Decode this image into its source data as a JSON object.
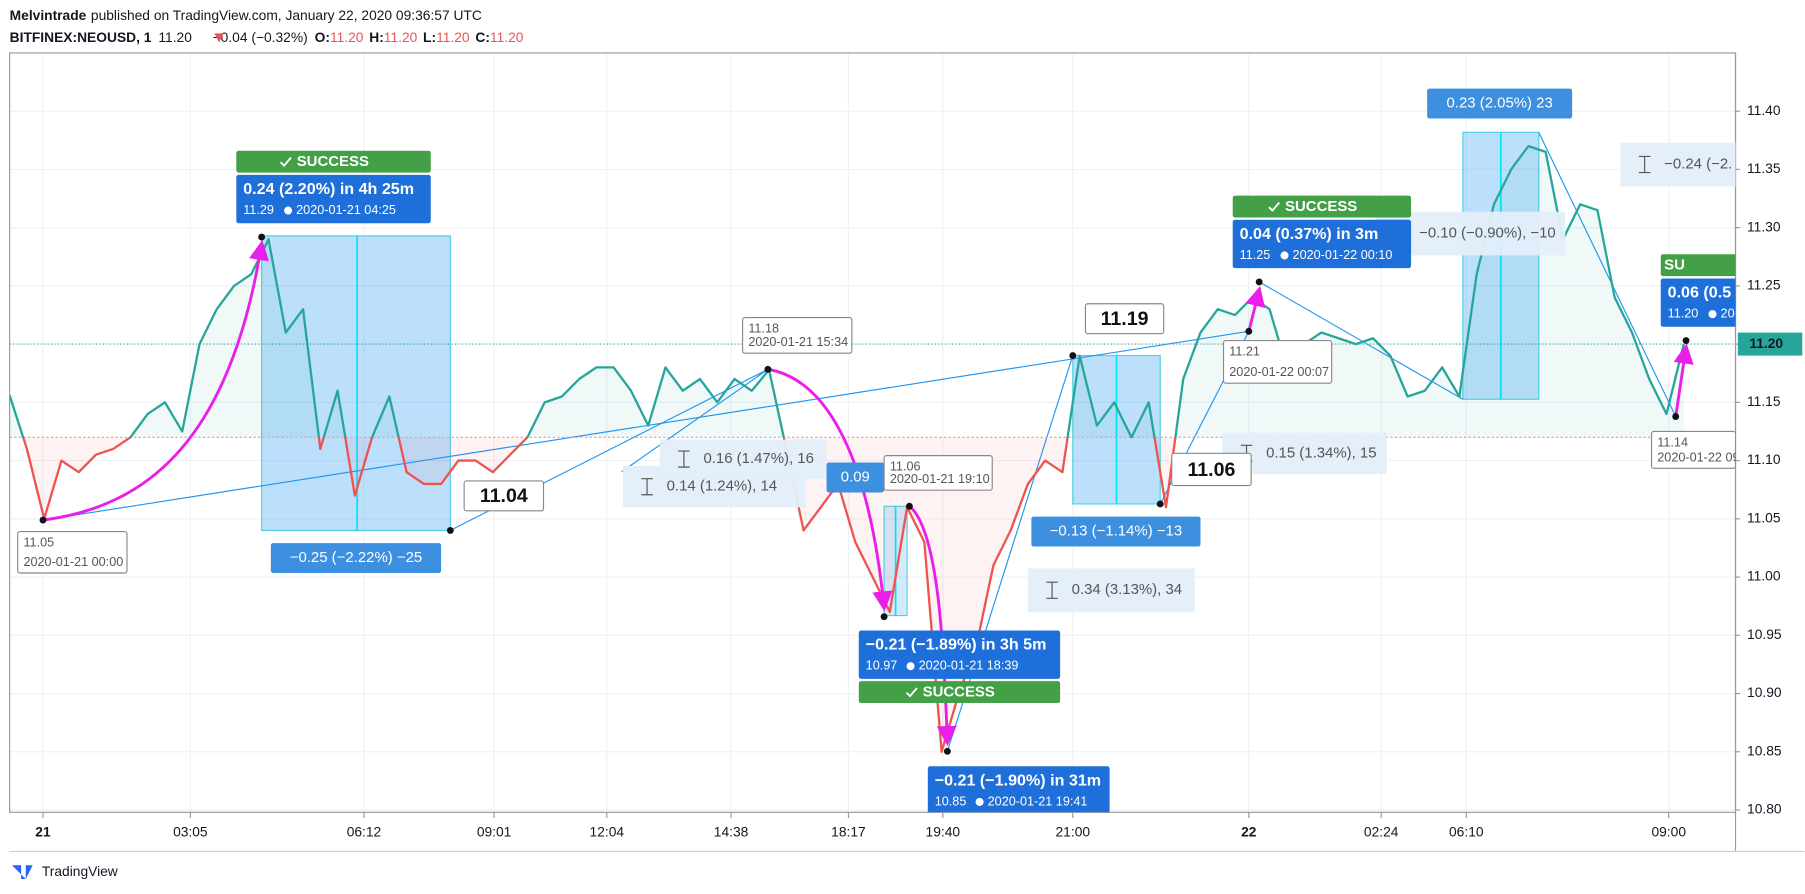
{
  "header": {
    "author": "Melvintrade",
    "published": "published on TradingView.com, January 22, 2020 09:36:57 UTC",
    "symbol": "BITFINEX:NEOUSD, 1",
    "last": "11.20",
    "change": "−0.04 (−0.32%)",
    "ohlc": [
      {
        "key": "O:",
        "value": "11.20"
      },
      {
        "key": "H:",
        "value": "11.20"
      },
      {
        "key": "L:",
        "value": "11.20"
      },
      {
        "key": "C:",
        "value": "11.20"
      }
    ]
  },
  "chart_data": {
    "type": "line",
    "series": [
      {
        "name": "NEOUSD",
        "color_up": "#26a69a",
        "color_down": "#ef5350",
        "values": [
          11.156,
          11.11,
          11.05,
          11.1,
          11.09,
          11.105,
          11.11,
          11.12,
          11.14,
          11.15,
          11.125,
          11.2,
          11.23,
          11.25,
          11.26,
          11.29,
          11.21,
          11.23,
          11.11,
          11.16,
          11.07,
          11.12,
          11.155,
          11.09,
          11.08,
          11.08,
          11.1,
          11.1,
          11.09,
          11.105,
          11.12,
          11.15,
          11.155,
          11.17,
          11.18,
          11.18,
          11.16,
          11.13,
          11.18,
          11.16,
          11.17,
          11.15,
          11.17,
          11.16,
          11.178,
          11.11,
          11.04,
          11.06,
          11.08,
          11.03,
          11.0,
          10.97,
          11.06,
          11.03,
          10.85,
          10.9,
          10.94,
          11.01,
          11.04,
          11.08,
          11.1,
          11.09,
          11.19,
          11.13,
          11.15,
          11.12,
          11.15,
          11.06,
          11.17,
          11.21,
          11.23,
          11.225,
          11.24,
          11.23,
          11.18,
          11.2,
          11.21,
          11.205,
          11.2,
          11.205,
          11.19,
          11.155,
          11.16,
          11.18,
          11.155,
          11.26,
          11.32,
          11.35,
          11.37,
          11.365,
          11.29,
          11.32,
          11.315,
          11.24,
          11.21,
          11.17,
          11.14,
          11.2
        ]
      }
    ],
    "baseline": 11.12,
    "last_price": 11.2,
    "last_price_label": "11.20",
    "last_price_color": "#26a69a",
    "xlim": [
      0,
      100
    ],
    "xticks": [
      {
        "value": 1.93,
        "label": "21"
      },
      {
        "value": 10.47,
        "label": "03:05"
      },
      {
        "value": 20.53,
        "label": "06:12"
      },
      {
        "value": 28.07,
        "label": "09:01"
      },
      {
        "value": 34.6,
        "label": "12:04"
      },
      {
        "value": 41.8,
        "label": "14:38"
      },
      {
        "value": 48.6,
        "label": "18:17"
      },
      {
        "value": 54.07,
        "label": "19:40"
      },
      {
        "value": 61.6,
        "label": "21:00"
      },
      {
        "value": 71.8,
        "label": "22"
      },
      {
        "value": 79.47,
        "label": "02:24"
      },
      {
        "value": 84.4,
        "label": "06:10"
      },
      {
        "value": 96.13,
        "label": "09:00"
      }
    ],
    "ylim": [
      10.8,
      11.45
    ],
    "yticks": [
      {
        "value": 10.8,
        "label": "10.80"
      },
      {
        "value": 10.85,
        "label": "10.85"
      },
      {
        "value": 10.9,
        "label": "10.90"
      },
      {
        "value": 10.95,
        "label": "10.95"
      },
      {
        "value": 11.0,
        "label": "11.00"
      },
      {
        "value": 11.05,
        "label": "11.05"
      },
      {
        "value": 11.1,
        "label": "11.10"
      },
      {
        "value": 11.15,
        "label": "11.15"
      },
      {
        "value": 11.2,
        "label": "11.20"
      },
      {
        "value": 11.25,
        "label": "11.25"
      },
      {
        "value": 11.3,
        "label": "11.30"
      },
      {
        "value": 11.35,
        "label": "11.35"
      },
      {
        "value": 11.4,
        "label": "11.40"
      }
    ],
    "grid": true
  },
  "annotations": {
    "callouts": [
      {
        "price": "11.05",
        "time": "2020-01-21 00:00"
      },
      {
        "price": "11.04"
      },
      {
        "price": "11.18",
        "time": "2020-01-21 15:34"
      },
      {
        "price": "11.06",
        "time": "2020-01-21 19:10"
      },
      {
        "price": "11.19"
      },
      {
        "price": "11.21",
        "time": "2020-01-22 00:07"
      },
      {
        "price": "11.06"
      },
      {
        "price": "11.14",
        "time": "2020-01-22 09"
      }
    ],
    "forecasts": [
      {
        "status": "SUCCESS",
        "change": "0.24 (2.20%) in 4h 25m",
        "price": "11.29",
        "time": "2020-01-21  04:25"
      },
      {
        "status": "SUCCESS",
        "change": "−0.21 (−1.89%) in 3h 5m",
        "price": "10.97",
        "time": "2020-01-21  18:39"
      },
      {
        "change": "−0.21 (−1.90%) in 31m",
        "price": "10.85",
        "time": "2020-01-21  19:41"
      },
      {
        "status": "SUCCESS",
        "change": "0.04 (0.37%) in 3m",
        "price": "11.25",
        "time": "2020-01-22  00:10"
      },
      {
        "status": "SU",
        "change": "0.06 (0.5",
        "price": "11.20",
        "time": "20"
      }
    ],
    "ranges": [
      "−0.25 (−2.22%) −25",
      "0.09",
      "−0.13 (−1.14%) −13",
      "0.23 (2.05%) 23"
    ],
    "measures": [
      "0.14 (1.24%), 14",
      "0.16 (1.47%), 16",
      "0.34 (3.13%), 34",
      "0.15 (1.34%), 15",
      "−0.10 (−0.90%), −10",
      "−0.24 (−2."
    ]
  },
  "footer": {
    "logo": "TradingView"
  }
}
